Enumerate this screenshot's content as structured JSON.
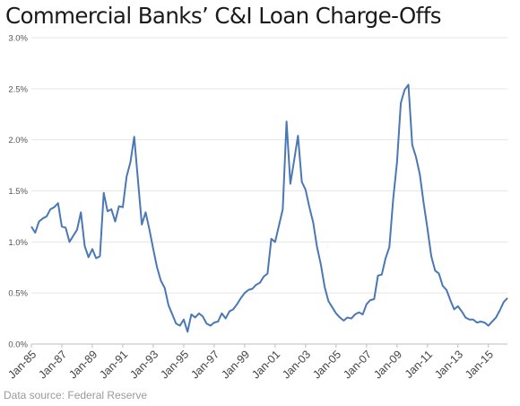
{
  "title": "Commercial Banks’ C&I Loan Charge-Offs",
  "source": "Data source: Federal Reserve",
  "colors": {
    "line": "#4a78b6",
    "grid": "#e6e6e6",
    "axis": "#bdbdbd"
  },
  "chart_data": {
    "type": "line",
    "title": "Commercial Banks’ C&I Loan Charge-Offs",
    "xlabel": "",
    "ylabel": "",
    "ylim": [
      0,
      3.0
    ],
    "grid": true,
    "yticks": [
      "0.0%",
      "0.5%",
      "1.0%",
      "1.5%",
      "2.0%",
      "2.5%",
      "3.0%"
    ],
    "xticks": [
      "Jan-85",
      "Jan-87",
      "Jan-89",
      "Jan-91",
      "Jan-93",
      "Jan-95",
      "Jan-97",
      "Jan-99",
      "Jan-01",
      "Jan-03",
      "Jan-05",
      "Jan-07",
      "Jan-09",
      "Jan-11",
      "Jan-13",
      "Jan-15"
    ],
    "x_start": "Jan-85",
    "x_step": "quarter",
    "series": [
      {
        "name": "",
        "values": [
          1.15,
          1.09,
          1.2,
          1.23,
          1.25,
          1.32,
          1.34,
          1.38,
          1.15,
          1.14,
          1.0,
          1.06,
          1.12,
          1.29,
          0.96,
          0.85,
          0.93,
          0.84,
          0.86,
          1.48,
          1.3,
          1.32,
          1.2,
          1.35,
          1.34,
          1.64,
          1.78,
          2.03,
          1.6,
          1.17,
          1.29,
          1.12,
          0.93,
          0.75,
          0.62,
          0.55,
          0.38,
          0.29,
          0.2,
          0.18,
          0.24,
          0.12,
          0.29,
          0.26,
          0.3,
          0.27,
          0.2,
          0.18,
          0.21,
          0.22,
          0.3,
          0.25,
          0.32,
          0.34,
          0.39,
          0.45,
          0.5,
          0.53,
          0.54,
          0.58,
          0.6,
          0.66,
          0.69,
          1.03,
          1.0,
          1.16,
          1.32,
          2.18,
          1.57,
          1.8,
          2.04,
          1.59,
          1.51,
          1.34,
          1.19,
          0.95,
          0.78,
          0.56,
          0.42,
          0.36,
          0.3,
          0.26,
          0.23,
          0.26,
          0.25,
          0.29,
          0.31,
          0.29,
          0.39,
          0.43,
          0.44,
          0.67,
          0.68,
          0.84,
          0.95,
          1.42,
          1.78,
          2.36,
          2.49,
          2.54,
          1.95,
          1.83,
          1.66,
          1.38,
          1.13,
          0.86,
          0.72,
          0.69,
          0.57,
          0.53,
          0.43,
          0.34,
          0.37,
          0.32,
          0.26,
          0.24,
          0.24,
          0.21,
          0.22,
          0.21,
          0.18,
          0.22,
          0.26,
          0.33,
          0.41,
          0.45
        ]
      }
    ]
  }
}
